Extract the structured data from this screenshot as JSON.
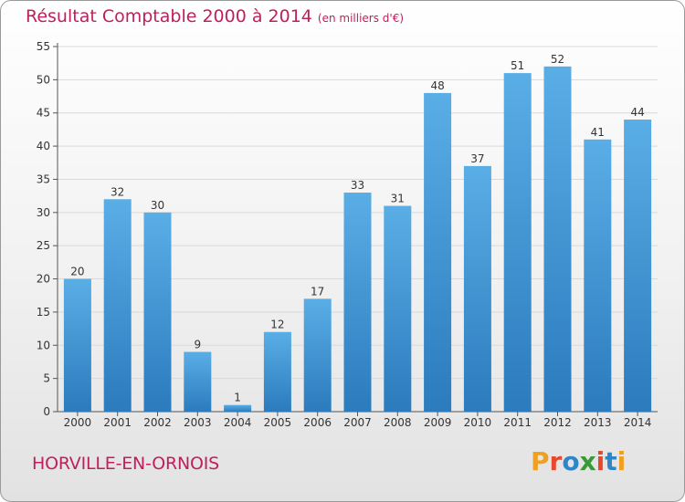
{
  "title": "Résultat Comptable 2000 à 2014",
  "subtitle": "(en milliers d'€)",
  "city": "HORVILLE-EN-ORNOIS",
  "logo": {
    "p": "P",
    "r": "r",
    "o": "o",
    "x": "x",
    "i": "i",
    "t": "t",
    "i2": "i"
  },
  "colors": {
    "accent": "#c01f5d",
    "bar_top": "#5aaee6",
    "bar_bottom": "#2b7bbd",
    "grid": "#d9d9d9"
  },
  "chart_data": {
    "type": "bar",
    "title": "Résultat Comptable 2000 à 2014",
    "subtitle": "(en milliers d'€)",
    "categories": [
      "2000",
      "2001",
      "2002",
      "2003",
      "2004",
      "2005",
      "2006",
      "2007",
      "2008",
      "2009",
      "2010",
      "2011",
      "2012",
      "2013",
      "2014"
    ],
    "values": [
      20,
      32,
      30,
      9,
      1,
      12,
      17,
      33,
      31,
      48,
      37,
      51,
      52,
      41,
      44
    ],
    "yticks": [
      0,
      5,
      10,
      15,
      20,
      25,
      30,
      35,
      40,
      45,
      50,
      55
    ],
    "ylim": [
      0,
      55
    ],
    "xlabel": "",
    "ylabel": "",
    "grid": true
  }
}
